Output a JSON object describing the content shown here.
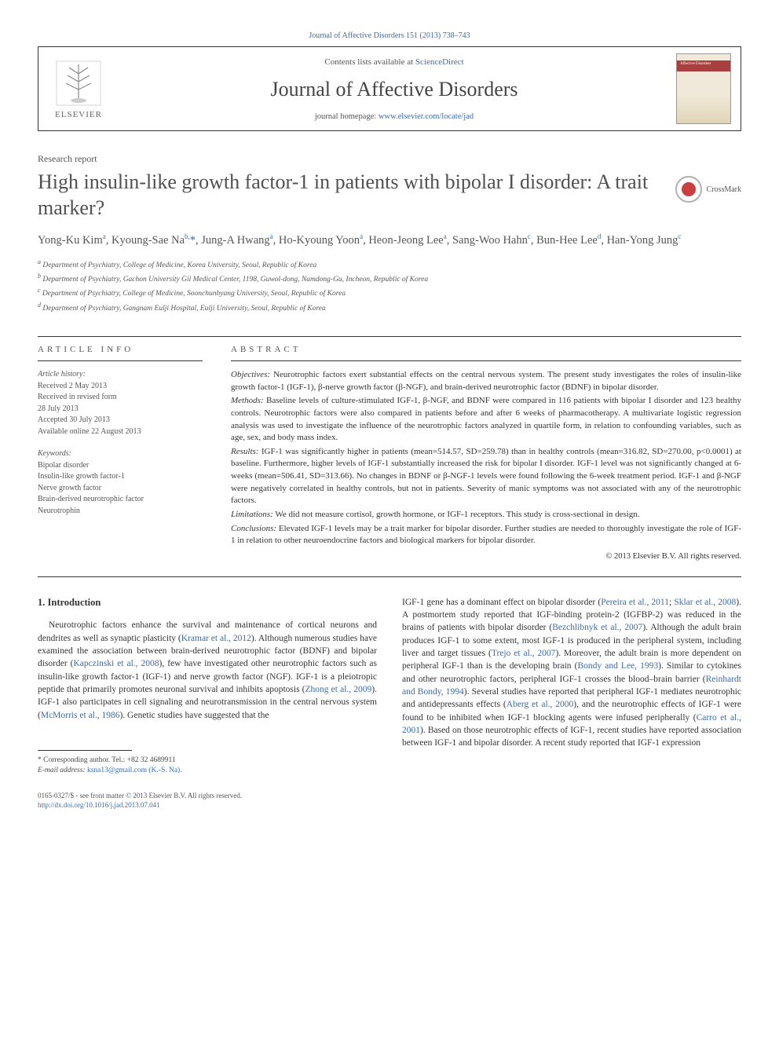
{
  "top_citation": "Journal of Affective Disorders 151 (2013) 738–743",
  "header": {
    "contents_prefix": "Contents lists available at ",
    "contents_link": "ScienceDirect",
    "journal_name": "Journal of Affective Disorders",
    "homepage_prefix": "journal homepage: ",
    "homepage_url": "www.elsevier.com/locate/jad",
    "publisher_name": "ELSEVIER",
    "cover_label": "Affective Disorders"
  },
  "article": {
    "section_label": "Research report",
    "title": "High insulin-like growth factor-1 in patients with bipolar I disorder: A trait marker?",
    "crossmark_label": "CrossMark",
    "authors_html": "Yong-Ku Kim<sup>a</sup>, Kyoung-Sae Na<sup>b,</sup><span class='star'>*</span>, Jung-A Hwang<sup>a</sup>, Ho-Kyoung Yoon<sup>a</sup>, Heon-Jeong Lee<sup>a</sup>, Sang-Woo Hahn<sup>c</sup>, Bun-Hee Lee<sup>d</sup>, Han-Yong Jung<sup>c</sup>",
    "affiliations": [
      "a Department of Psychiatry, College of Medicine, Korea University, Seoul, Republic of Korea",
      "b Department of Psychiatry, Gachon University Gil Medical Center, 1198, Guwol-dong, Namdong-Gu, Incheon, Republic of Korea",
      "c Department of Psychiatry, College of Medicine, Soonchunhyang University, Seoul, Republic of Korea",
      "d Department of Psychiatry, Gangnam Eulji Hospital, Eulji University, Seoul, Republic of Korea"
    ]
  },
  "article_info": {
    "heading": "article info",
    "history_label": "Article history:",
    "history": [
      "Received 2 May 2013",
      "Received in revised form",
      "28 July 2013",
      "Accepted 30 July 2013",
      "Available online 22 August 2013"
    ],
    "keywords_label": "Keywords:",
    "keywords": [
      "Bipolar disorder",
      "Insulin-like growth factor-1",
      "Nerve growth factor",
      "Brain-derived neurotrophic factor",
      "Neurotrophin"
    ]
  },
  "abstract": {
    "heading": "abstract",
    "sections": [
      {
        "label": "Objectives:",
        "text": " Neurotrophic factors exert substantial effects on the central nervous system. The present study investigates the roles of insulin-like growth factor-1 (IGF-1), β-nerve growth factor (β-NGF), and brain-derived neurotrophic factor (BDNF) in bipolar disorder."
      },
      {
        "label": "Methods:",
        "text": " Baseline levels of culture-stimulated IGF-1, β-NGF, and BDNF were compared in 116 patients with bipolar I disorder and 123 healthy controls. Neurotrophic factors were also compared in patients before and after 6 weeks of pharmacotherapy. A multivariate logistic regression analysis was used to investigate the influence of the neurotrophic factors analyzed in quartile form, in relation to confounding variables, such as age, sex, and body mass index."
      },
      {
        "label": "Results:",
        "text": " IGF-1 was significantly higher in patients (mean=514.57, SD=259.78) than in healthy controls (mean=316.82, SD=270.00, p<0.0001) at baseline. Furthermore, higher levels of IGF-1 substantially increased the risk for bipolar I disorder. IGF-1 level was not significantly changed at 6-weeks (mean=506.41, SD=313.66). No changes in BDNF or β-NGF-1 levels were found following the 6-week treatment period. IGF-1 and β-NGF were negatively correlated in healthy controls, but not in patients. Severity of manic symptoms was not associated with any of the neurotrophic factors."
      },
      {
        "label": "Limitations:",
        "text": " We did not measure cortisol, growth hormone, or IGF-1 receptors. This study is cross-sectional in design."
      },
      {
        "label": "Conclusions:",
        "text": " Elevated IGF-1 levels may be a trait marker for bipolar disorder. Further studies are needed to thoroughly investigate the role of IGF-1 in relation to other neuroendocrine factors and biological markers for bipolar disorder."
      }
    ],
    "copyright": "© 2013 Elsevier B.V. All rights reserved."
  },
  "body": {
    "intro_heading": "1.  Introduction",
    "col1_text": "Neurotrophic factors enhance the survival and maintenance of cortical neurons and dendrites as well as synaptic plasticity (Kramar et al., 2012). Although numerous studies have examined the association between brain-derived neurotrophic factor (BDNF) and bipolar disorder (Kapczinski et al., 2008), few have investigated other neurotrophic factors such as insulin-like growth factor-1 (IGF-1) and nerve growth factor (NGF). IGF-1 is a pleiotropic peptide that primarily promotes neuronal survival and inhibits apoptosis (Zhong et al., 2009). IGF-1 also participates in cell signaling and neurotransmission in the central nervous system (McMorris et al., 1986). Genetic studies have suggested that the",
    "col2_text": "IGF-1 gene has a dominant effect on bipolar disorder (Pereira et al., 2011; Sklar et al., 2008). A postmortem study reported that IGF-binding protein-2 (IGFBP-2) was reduced in the brains of patients with bipolar disorder (Bezchlibnyk et al., 2007). Although the adult brain produces IGF-1 to some extent, most IGF-1 is produced in the peripheral system, including liver and target tissues (Trejo et al., 2007). Moreover, the adult brain is more dependent on peripheral IGF-1 than is the developing brain (Bondy and Lee, 1993). Similar to cytokines and other neurotrophic factors, peripheral IGF-1 crosses the blood–brain barrier (Reinhardt and Bondy, 1994). Several studies have reported that peripheral IGF-1 mediates neurotrophic and antidepressants effects (Aberg et al., 2000), and the neurotrophic effects of IGF-1 were found to be inhibited when IGF-1 blocking agents were infused peripherally (Carro et al., 2001). Based on those neurotrophic effects of IGF-1, recent studies have reported association between IGF-1 and bipolar disorder. A recent study reported that IGF-1 expression",
    "refs": [
      "Kramar et al., 2012",
      "Kapczinski et al., 2008",
      "Zhong et al., 2009",
      "McMorris et al., 1986",
      "Pereira et al., 2011",
      "Sklar et al., 2008",
      "Bezchlibnyk et al., 2007",
      "Trejo et al., 2007",
      "Bondy and Lee, 1993",
      "Reinhardt and Bondy, 1994",
      "Aberg et al., 2000",
      "Carro et al., 2001"
    ]
  },
  "footnotes": {
    "corr_label": "* Corresponding author. Tel.: +82 32 4689911",
    "email_label": "E-mail address:",
    "email": "ksna13@gmail.com (K.-S. Na).",
    "issn_line": "0165-0327/$ - see front matter © 2013 Elsevier B.V. All rights reserved.",
    "doi": "http://dx.doi.org/10.1016/j.jad.2013.07.041"
  },
  "colors": {
    "link": "#3a6ba8",
    "text": "#333333",
    "rule": "#333333"
  }
}
